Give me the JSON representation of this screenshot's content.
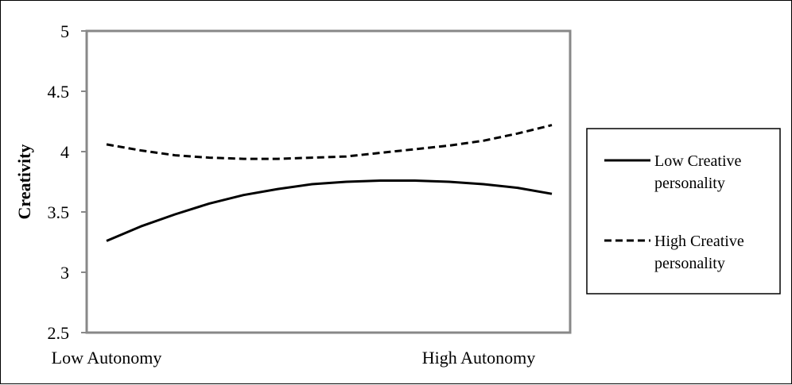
{
  "chart_data": {
    "type": "line",
    "title": "",
    "xlabel": "",
    "ylabel": "Creativity",
    "ylim": [
      2.5,
      5
    ],
    "yticks": [
      "2.5",
      "3",
      "3.5",
      "4",
      "4.5",
      "5"
    ],
    "categories": [
      "Low Autonomy",
      "High Autonomy"
    ],
    "grid": false,
    "legend_position": "right",
    "x": [
      0,
      0.1,
      0.2,
      0.3,
      0.4,
      0.5,
      0.6,
      0.7,
      0.8,
      0.9,
      1.0,
      1.1,
      1.2,
      1.3
    ],
    "series": [
      {
        "name": "Low Creative personality",
        "legend_lines": [
          "Low Creative",
          "personality"
        ],
        "style": "solid",
        "color": "#000000",
        "values": [
          3.26,
          3.38,
          3.48,
          3.57,
          3.64,
          3.69,
          3.73,
          3.75,
          3.76,
          3.76,
          3.75,
          3.73,
          3.7,
          3.65
        ]
      },
      {
        "name": "High Creative personality",
        "legend_lines": [
          "High Creative",
          "personality"
        ],
        "style": "dashed",
        "color": "#000000",
        "values": [
          4.06,
          4.01,
          3.97,
          3.95,
          3.94,
          3.94,
          3.95,
          3.96,
          3.99,
          4.02,
          4.05,
          4.09,
          4.15,
          4.22
        ]
      }
    ]
  }
}
